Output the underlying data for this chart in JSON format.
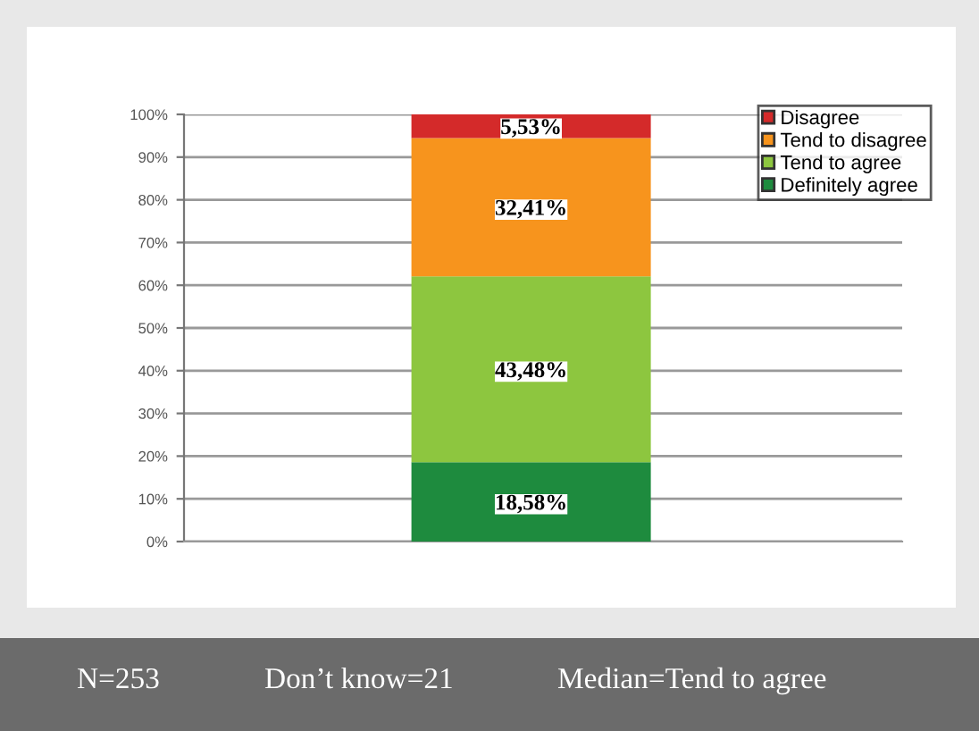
{
  "chart_data": {
    "type": "bar",
    "stacked": true,
    "categories": [
      null
    ],
    "series": [
      {
        "name": "Definitely agree",
        "color": "#1e8b3e",
        "values": [
          18.58
        ],
        "value_labels": [
          "18,58%"
        ]
      },
      {
        "name": "Tend to agree",
        "color": "#8dc63f",
        "values": [
          43.48
        ],
        "value_labels": [
          "43,48%"
        ]
      },
      {
        "name": "Tend to disagree",
        "color": "#f7941d",
        "values": [
          32.41
        ],
        "value_labels": [
          "32,41%"
        ]
      },
      {
        "name": "Disagree",
        "color": "#d42a2a",
        "values": [
          5.53
        ],
        "value_labels": [
          "5,53%"
        ]
      }
    ],
    "ylim": [
      0,
      100
    ],
    "yticks": [
      {
        "value": 0,
        "label": "0%"
      },
      {
        "value": 10,
        "label": "10%"
      },
      {
        "value": 20,
        "label": "20%"
      },
      {
        "value": 30,
        "label": "30%"
      },
      {
        "value": 40,
        "label": "40%"
      },
      {
        "value": 50,
        "label": "50%"
      },
      {
        "value": 60,
        "label": "60%"
      },
      {
        "value": 70,
        "label": "70%"
      },
      {
        "value": 80,
        "label": "80%"
      },
      {
        "value": 90,
        "label": "90%"
      },
      {
        "value": 100,
        "label": "100%"
      }
    ],
    "grid": "y",
    "legend": "top right",
    "annotations": [
      "N=253",
      "Don’t know=21",
      "Median=Tend to agree"
    ]
  }
}
